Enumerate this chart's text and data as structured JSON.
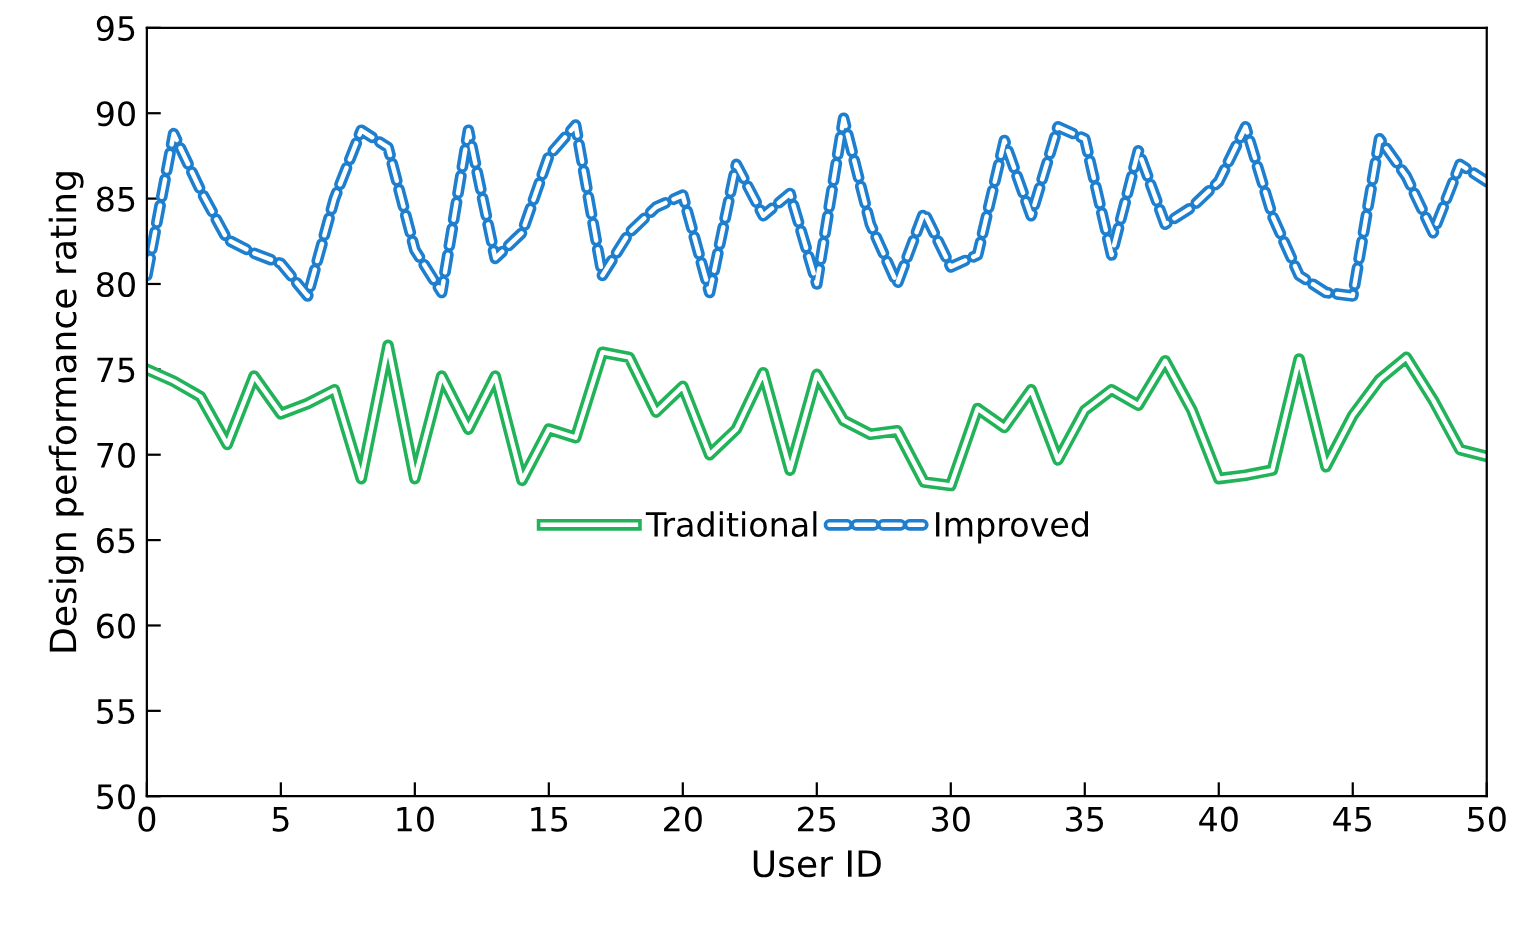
{
  "chart_data": {
    "type": "line",
    "xlabel": "User ID",
    "ylabel": "Design performance rating",
    "x": [
      0,
      1,
      2,
      3,
      4,
      5,
      6,
      7,
      8,
      9,
      10,
      11,
      12,
      13,
      14,
      15,
      16,
      17,
      18,
      19,
      20,
      21,
      22,
      23,
      24,
      25,
      26,
      27,
      28,
      29,
      30,
      31,
      32,
      33,
      34,
      35,
      36,
      37,
      38,
      39,
      40,
      41,
      42,
      43,
      44,
      45,
      46,
      47,
      48,
      49,
      50
    ],
    "series": [
      {
        "name": "Traditional",
        "color": "#22b35a",
        "line_style": "solid",
        "values": [
          75,
          74.3,
          73.4,
          70.6,
          74.6,
          72.4,
          73,
          73.8,
          68.6,
          76.4,
          68.6,
          74.6,
          71.5,
          74.6,
          68.5,
          71.5,
          71,
          76,
          75.7,
          72.5,
          74,
          70,
          71.5,
          74.8,
          69.1,
          74.7,
          72,
          71.2,
          71.4,
          68.4,
          68.2,
          72.7,
          71.6,
          73.8,
          69.7,
          72.6,
          73.8,
          72.9,
          75.5,
          72.6,
          68.6,
          68.8,
          69.1,
          75.6,
          69.3,
          72.3,
          74.4,
          75.7,
          73.2,
          70.3,
          69.9
        ]
      },
      {
        "name": "Improved",
        "color": "#1f7fcf",
        "line_style": "dashed",
        "values": [
          80.5,
          88.8,
          85.5,
          82.6,
          81.8,
          81.2,
          79.3,
          85,
          89,
          88,
          82,
          79.5,
          89,
          81.5,
          83,
          87.5,
          89.3,
          80.5,
          83,
          84.5,
          85.2,
          79.5,
          87,
          84,
          85.3,
          80,
          89.7,
          83.5,
          80,
          84.2,
          81,
          81.7,
          88.4,
          84,
          89.2,
          88.5,
          81.7,
          87.8,
          83.5,
          84.5,
          86,
          89.2,
          84,
          80.5,
          79.5,
          79.3,
          88.5,
          86.3,
          83,
          87,
          86
        ]
      }
    ],
    "xlim": [
      0,
      50
    ],
    "xticks": [
      0,
      5,
      10,
      15,
      20,
      25,
      30,
      35,
      40,
      45,
      50
    ],
    "ylim": [
      50,
      95
    ],
    "yticks": [
      50,
      55,
      60,
      65,
      70,
      75,
      80,
      85,
      90,
      95
    ],
    "grid": false,
    "legend": "center",
    "marker": "none"
  }
}
